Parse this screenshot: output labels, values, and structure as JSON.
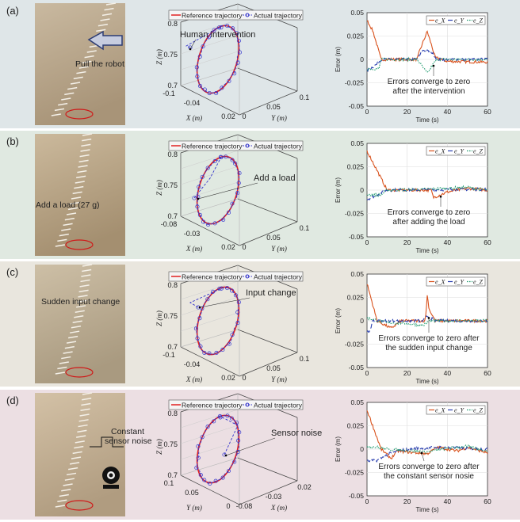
{
  "colors": {
    "ex": "#d9531e",
    "ey": "#2a3fb0",
    "ez": "#1e9a6e",
    "reference": "#e02020",
    "actual": "#3333cc"
  },
  "chart_data": [
    {
      "panel_label": "(a)",
      "photo_annotation": [
        "Pull the robot"
      ],
      "trajectory": {
        "type": "line3d",
        "legend": [
          "Reference trajectory",
          "Actual trajectory"
        ],
        "annotation": "Human intervention",
        "zlabel": "Z (m)",
        "zticks": [
          "0.8",
          "0.75",
          "0.7"
        ],
        "left_axis_label": "X (m)",
        "left_ticks": [
          "-0.1",
          "-0.04",
          "0.02"
        ],
        "right_axis_label": "Y (m)",
        "right_ticks": [
          "0",
          "0.05",
          "0.1"
        ]
      },
      "error": {
        "type": "line",
        "ylabel": "Error (m)",
        "xlabel": "Time (s)",
        "xlim": [
          0,
          60
        ],
        "ylim": [
          -0.05,
          0.05
        ],
        "xticks": [
          "0",
          "20",
          "40",
          "60"
        ],
        "yticks": [
          "0.05",
          "0.025",
          "0",
          "-0.025",
          "-0.05"
        ],
        "grid": true,
        "legend_position": "top-right",
        "legend": [
          "e_X",
          "e_Y",
          "e_Z"
        ],
        "annotation": [
          "Errors converge to zero",
          "after the intervention"
        ],
        "series": [
          {
            "name": "e_X",
            "points": [
              [
                0,
                0.042
              ],
              [
                3,
                0.03
              ],
              [
                7,
                0
              ],
              [
                25,
                0
              ],
              [
                26,
                0.008
              ],
              [
                30,
                0.03
              ],
              [
                34,
                0.002
              ],
              [
                40,
                -0.002
              ],
              [
                60,
                -0.003
              ]
            ]
          },
          {
            "name": "e_Y",
            "points": [
              [
                0,
                -0.012
              ],
              [
                5,
                -0.005
              ],
              [
                7,
                0
              ],
              [
                25,
                0
              ],
              [
                28,
                0.01
              ],
              [
                32,
                0.008
              ],
              [
                35,
                0
              ],
              [
                60,
                0
              ]
            ]
          },
          {
            "name": "e_Z",
            "points": [
              [
                0,
                -0.01
              ],
              [
                6,
                -0.01
              ],
              [
                7,
                0
              ],
              [
                25,
                0
              ],
              [
                30,
                -0.015
              ],
              [
                33,
                -0.005
              ],
              [
                35,
                0
              ],
              [
                60,
                0
              ]
            ]
          }
        ]
      }
    },
    {
      "panel_label": "(b)",
      "photo_annotation": [
        "Add a load (27 g)"
      ],
      "trajectory": {
        "type": "line3d",
        "legend": [
          "Reference trajectory",
          "Actual trajectory"
        ],
        "annotation": "Add a load",
        "zlabel": "Z (m)",
        "zticks": [
          "0.8",
          "0.75",
          "0.7"
        ],
        "left_axis_label": "X (m)",
        "left_ticks": [
          "-0.08",
          "-0.03",
          "0.02"
        ],
        "right_axis_label": "Y (m)",
        "right_ticks": [
          "0",
          "0.05",
          "0.1"
        ]
      },
      "error": {
        "type": "line",
        "ylabel": "Error (m)",
        "xlabel": "Time (s)",
        "xlim": [
          0,
          60
        ],
        "ylim": [
          -0.05,
          0.05
        ],
        "xticks": [
          "0",
          "20",
          "40",
          "60"
        ],
        "yticks": [
          "0.05",
          "0.025",
          "0",
          "-0.025",
          "-0.05"
        ],
        "grid": true,
        "legend_position": "top-right",
        "legend": [
          "e_X",
          "e_Y",
          "e_Z"
        ],
        "annotation": [
          "Errors converge to zero",
          "after adding the load"
        ],
        "series": [
          {
            "name": "e_X",
            "points": [
              [
                0,
                0.042
              ],
              [
                10,
                0
              ],
              [
                32,
                0
              ],
              [
                33,
                -0.008
              ],
              [
                40,
                -0.002
              ],
              [
                50,
                0.002
              ],
              [
                60,
                0
              ]
            ]
          },
          {
            "name": "e_Y",
            "points": [
              [
                0,
                -0.01
              ],
              [
                5,
                -0.005
              ],
              [
                10,
                0
              ],
              [
                60,
                0.001
              ]
            ]
          },
          {
            "name": "e_Z",
            "points": [
              [
                0,
                -0.005
              ],
              [
                7,
                -0.005
              ],
              [
                10,
                0
              ],
              [
                30,
                0.001
              ],
              [
                50,
                0.003
              ],
              [
                60,
                0
              ]
            ]
          }
        ]
      }
    },
    {
      "panel_label": "(c)",
      "photo_annotation": [
        "Sudden input change"
      ],
      "trajectory": {
        "type": "line3d",
        "legend": [
          "Reference trajectory",
          "Actual trajectory"
        ],
        "annotation": "Input change",
        "zlabel": "Z (m)",
        "zticks": [
          "0.8",
          "0.75",
          "0.7"
        ],
        "left_axis_label": "X (m)",
        "left_ticks": [
          "-0.1",
          "-0.04",
          "0.02"
        ],
        "right_axis_label": "Y (m)",
        "right_ticks": [
          "0",
          "0.05",
          "0.1"
        ]
      },
      "error": {
        "type": "line",
        "ylabel": "Error (m)",
        "xlabel": "Time (s)",
        "xlim": [
          0,
          60
        ],
        "ylim": [
          -0.05,
          0.05
        ],
        "xticks": [
          "0",
          "20",
          "40",
          "60"
        ],
        "yticks": [
          "0.05",
          "0.025",
          "0",
          "-0.025",
          "-0.05"
        ],
        "grid": true,
        "legend_position": "top-right",
        "legend": [
          "e_X",
          "e_Y",
          "e_Z"
        ],
        "annotation": [
          "Errors converge to zero after",
          "the sudden input change"
        ],
        "series": [
          {
            "name": "e_X",
            "points": [
              [
                0,
                0.04
              ],
              [
                5,
                0
              ],
              [
                12,
                -0.008
              ],
              [
                17,
                0
              ],
              [
                29,
                0
              ],
              [
                30,
                0.027
              ],
              [
                31,
                0.012
              ],
              [
                34,
                0
              ],
              [
                60,
                0
              ]
            ]
          },
          {
            "name": "e_Y",
            "points": [
              [
                0,
                -0.012
              ],
              [
                1,
                -0.012
              ],
              [
                3,
                0
              ],
              [
                28,
                0
              ],
              [
                30,
                0.005
              ],
              [
                34,
                0
              ],
              [
                60,
                0
              ]
            ]
          },
          {
            "name": "e_Z",
            "points": [
              [
                0,
                0.003
              ],
              [
                10,
                -0.002
              ],
              [
                20,
                -0.003
              ],
              [
                28,
                -0.005
              ],
              [
                31,
                0
              ],
              [
                60,
                0
              ]
            ]
          }
        ]
      }
    },
    {
      "panel_label": "(d)",
      "photo_annotation": [
        "Constant",
        "sensor noise"
      ],
      "trajectory": {
        "type": "line3d",
        "legend": [
          "Reference trajectory",
          "Actual trajectory"
        ],
        "annotation": "Sensor noise",
        "zlabel": "Z (m)",
        "zticks": [
          "0.8",
          "0.75",
          "0.7"
        ],
        "left_axis_label": "Y (m)",
        "left_ticks": [
          "0.1",
          "0.05",
          "0"
        ],
        "right_axis_label": "X (m)",
        "right_ticks": [
          "-0.08",
          "-0.03",
          "0.02"
        ]
      },
      "error": {
        "type": "line",
        "ylabel": "Error (m)",
        "xlabel": "Time (s)",
        "xlim": [
          0,
          60
        ],
        "ylim": [
          -0.05,
          0.05
        ],
        "xticks": [
          "0",
          "20",
          "40",
          "60"
        ],
        "yticks": [
          "0.05",
          "0.025",
          "0",
          "-0.025",
          "-0.05"
        ],
        "grid": true,
        "legend_position": "top-right",
        "legend": [
          "e_X",
          "e_Y",
          "e_Z"
        ],
        "annotation": [
          "Errors converge to zero after",
          "the constant sensor nosie"
        ],
        "series": [
          {
            "name": "e_X",
            "points": [
              [
                0,
                0.042
              ],
              [
                7,
                0
              ],
              [
                12,
                -0.01
              ],
              [
                15,
                -0.002
              ],
              [
                30,
                -0.005
              ],
              [
                35,
                0.002
              ],
              [
                45,
                -0.002
              ],
              [
                50,
                0.002
              ],
              [
                60,
                -0.004
              ]
            ]
          },
          {
            "name": "e_Y",
            "points": [
              [
                0,
                -0.013
              ],
              [
                5,
                -0.012
              ],
              [
                12,
                -0.004
              ],
              [
                20,
                0
              ],
              [
                35,
                0.002
              ],
              [
                60,
                0
              ]
            ]
          },
          {
            "name": "e_Z",
            "points": [
              [
                0,
                0.003
              ],
              [
                5,
                0.002
              ],
              [
                10,
                0
              ],
              [
                30,
                -0.003
              ],
              [
                40,
                0.001
              ],
              [
                50,
                0.003
              ],
              [
                60,
                -0.002
              ]
            ]
          }
        ]
      }
    }
  ]
}
